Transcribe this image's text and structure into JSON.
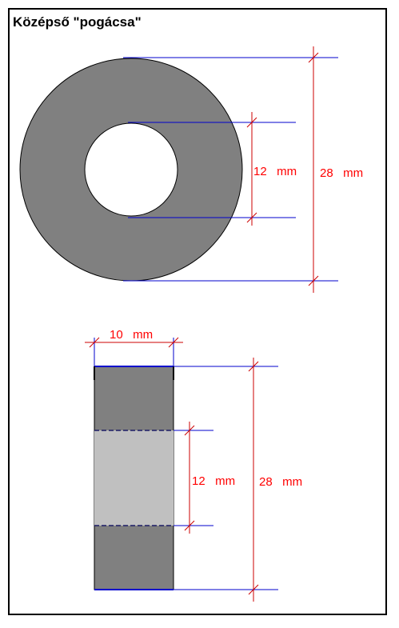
{
  "title": "Középső \"pogácsa\"",
  "colors": {
    "body": "#808080",
    "hole_section": "#c0c0c0",
    "dimension_line": "#0000cc",
    "dimension_arrow": "#cc0000",
    "dimension_text": "#ff0000",
    "outline": "#000000"
  },
  "top_view": {
    "inner_diameter_label": "12   mm",
    "outer_diameter_label": "28   mm"
  },
  "side_view": {
    "width_label": "10   mm",
    "inner_height_label": "12   mm",
    "outer_height_label": "28   mm"
  }
}
